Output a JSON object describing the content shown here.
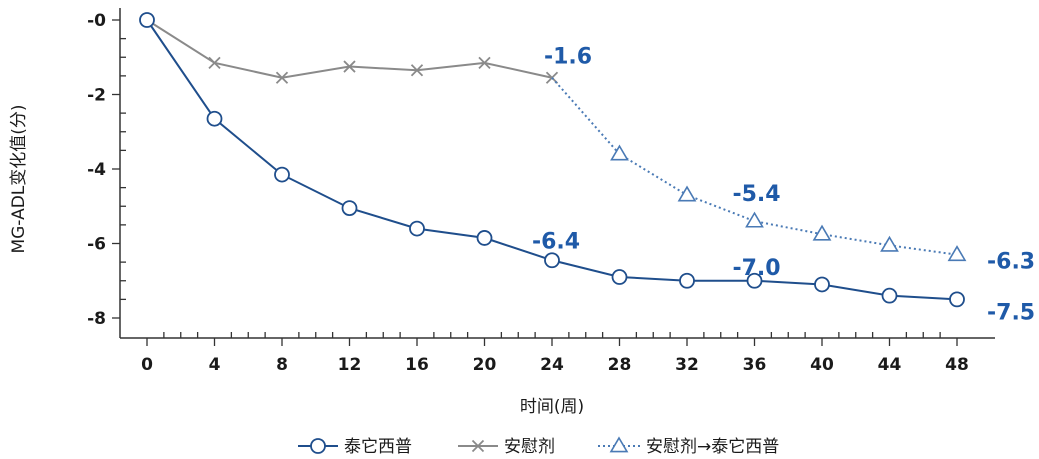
{
  "chart_data": {
    "type": "line",
    "xlabel": "时间(周)",
    "ylabel": "MG-ADL变化值(分)",
    "xlim": [
      0,
      48
    ],
    "ylim": [
      -8,
      0
    ],
    "x_ticks": [
      0,
      4,
      8,
      12,
      16,
      20,
      24,
      28,
      32,
      36,
      40,
      44,
      48
    ],
    "y_ticks": [
      {
        "value": 0,
        "label": "-0"
      },
      {
        "value": -2,
        "label": "-2"
      },
      {
        "value": -4,
        "label": "-4"
      },
      {
        "value": -6,
        "label": "-6"
      },
      {
        "value": -8,
        "label": "-8"
      }
    ],
    "grid": false,
    "legend_position": "bottom",
    "series": [
      {
        "name": "泰它西普",
        "color": "#1f4e8c",
        "marker": "circle",
        "line_style": "solid",
        "x": [
          0,
          4,
          8,
          12,
          16,
          20,
          24,
          28,
          32,
          36,
          40,
          44,
          48
        ],
        "values": [
          0,
          -2.65,
          -4.15,
          -5.05,
          -5.6,
          -5.85,
          -6.45,
          -6.9,
          -7.0,
          -7.0,
          -7.1,
          -7.4,
          -7.5
        ]
      },
      {
        "name": "安慰剂",
        "color": "#8a8a8a",
        "marker": "x",
        "line_style": "solid",
        "x": [
          0,
          4,
          8,
          12,
          16,
          20,
          24
        ],
        "values": [
          0,
          -1.15,
          -1.55,
          -1.25,
          -1.35,
          -1.15,
          -1.55
        ]
      },
      {
        "name": "安慰剂→泰它西普",
        "color": "#4a7ab5",
        "marker": "triangle",
        "line_style": "dotted",
        "x": [
          24,
          28,
          32,
          36,
          40,
          44,
          48
        ],
        "values": [
          -1.55,
          -3.6,
          -4.7,
          -5.4,
          -5.75,
          -6.05,
          -6.3
        ]
      }
    ],
    "annotations": [
      {
        "text": "-1.6",
        "x": 24,
        "y": -1.55,
        "color": "#1f5aa8"
      },
      {
        "text": "-5.4",
        "x": 36,
        "y": -5.4,
        "color": "#1f5aa8"
      },
      {
        "text": "-6.4",
        "x": 24,
        "y": -6.45,
        "color": "#1f5aa8"
      },
      {
        "text": "-7.0",
        "x": 36,
        "y": -7.0,
        "color": "#1f5aa8"
      },
      {
        "text": "-6.3",
        "x": 48,
        "y": -6.3,
        "color": "#1f5aa8"
      },
      {
        "text": "-7.5",
        "x": 48,
        "y": -7.5,
        "color": "#1f5aa8"
      }
    ]
  }
}
